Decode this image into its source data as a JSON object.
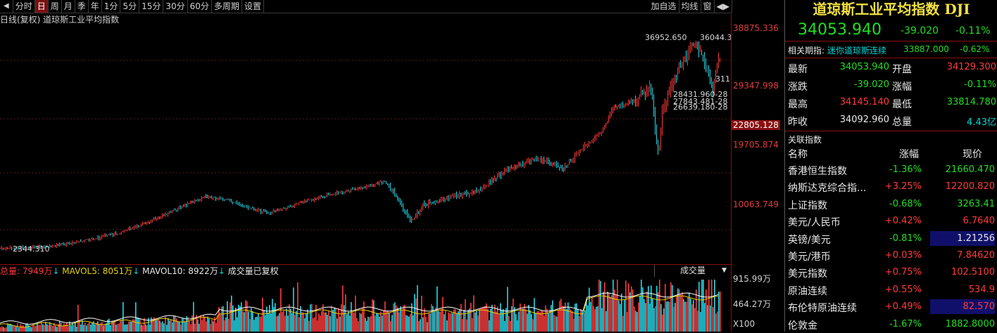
{
  "toolbar": {
    "play_prev": "◀",
    "play_next": "▶",
    "periods": [
      "分时",
      "日",
      "周",
      "月",
      "季",
      "年",
      "1分",
      "5分",
      "15分",
      "30分",
      "60分",
      "多周期",
      "设置"
    ],
    "active_period": "日",
    "right_buttons": [
      "加自选",
      "均线",
      "窗",
      "◀▶"
    ]
  },
  "chart": {
    "header": "日线(复权) 道琼斯工业平均指数",
    "axis_ticks": [
      "38875.336",
      "29347.998",
      "22805.128",
      "19705.874",
      "10063.749"
    ],
    "labels": {
      "high": "36952.650",
      "high_right": "36044.3",
      "right_cut": "311",
      "low1": "28431.960-28",
      "low2": "27843.481-28",
      "low3": "26639.180-28",
      "start": "2344.310"
    }
  },
  "volume": {
    "total_label": "总量: 7949万",
    "total_arrow": "↓",
    "ma5_label": "MAVOL5: 8051万",
    "ma5_arrow": "↓",
    "ma10_label": "MAVOL10: 8922万",
    "ma10_arrow": "↓",
    "note": "成交量已复权",
    "select": "成交量",
    "axis_ticks": [
      "915.99万",
      "464.27万",
      "X100"
    ]
  },
  "panel": {
    "title": "道琼斯工业平均指数 DJI",
    "price": "34053.940",
    "change": "-39.020",
    "change_pct": "-0.11%",
    "related_label": "相关期指:",
    "related_name": "迷你道琼斯连续",
    "related_price": "33887.000",
    "related_pct": "-0.62%",
    "stats": [
      {
        "k1": "最新",
        "v1": "34053.940",
        "k2": "开盘",
        "v2": "34129.300",
        "c1": "green",
        "c2": "red"
      },
      {
        "k1": "涨跌",
        "v1": "-39.020",
        "k2": "涨幅",
        "v2": "-0.11%",
        "c1": "green",
        "c2": "green"
      },
      {
        "k1": "最高",
        "v1": "34145.140",
        "k2": "最低",
        "v2": "33814.780",
        "c1": "red",
        "c2": "green"
      },
      {
        "k1": "昨收",
        "v1": "34092.960",
        "k2": "总量",
        "v2": "4.43亿",
        "c1": "white",
        "c2": "cyan"
      }
    ],
    "index_section": "关联指数",
    "index_headers": [
      "名称",
      "涨幅",
      "现价"
    ],
    "indices": [
      {
        "name": "香港恒生指数",
        "pct": "-1.36%",
        "price": "21660.470",
        "pc": "green",
        "vc": "green",
        "hl": false
      },
      {
        "name": "纳斯达克综合指...",
        "pct": "+3.25%",
        "price": "12200.820",
        "pc": "red",
        "vc": "red",
        "hl": false
      },
      {
        "name": "上证指数",
        "pct": "-0.68%",
        "price": "3263.41",
        "pc": "green",
        "vc": "green",
        "hl": false
      },
      {
        "name": "美元/人民币",
        "pct": "+0.42%",
        "price": "6.7640",
        "pc": "red",
        "vc": "red",
        "hl": false
      },
      {
        "name": "英镑/美元",
        "pct": "-0.81%",
        "price": "1.21256",
        "pc": "green",
        "vc": "white",
        "hl": true
      },
      {
        "name": "美元/港币",
        "pct": "+0.03%",
        "price": "7.84620",
        "pc": "red",
        "vc": "red",
        "hl": false
      },
      {
        "name": "美元指数",
        "pct": "+0.75%",
        "price": "102.5100",
        "pc": "red",
        "vc": "red",
        "hl": false
      },
      {
        "name": "原油连续",
        "pct": "+0.55%",
        "price": "534.9",
        "pc": "red",
        "vc": "red",
        "hl": false
      },
      {
        "name": "布伦特原油连续",
        "pct": "+0.49%",
        "price": "82.570",
        "pc": "red",
        "vc": "red",
        "hl": true
      },
      {
        "name": "伦敦金",
        "pct": "-1.67%",
        "price": "1882.8000",
        "pc": "green",
        "vc": "green",
        "hl": false
      }
    ]
  },
  "colors": {
    "up": "#ff3b3b",
    "down": "#22d8e8",
    "ma5": "#ffffff",
    "ma10": "#e8d000",
    "accent": "#8a1010",
    "highlight": "#10106a"
  }
}
